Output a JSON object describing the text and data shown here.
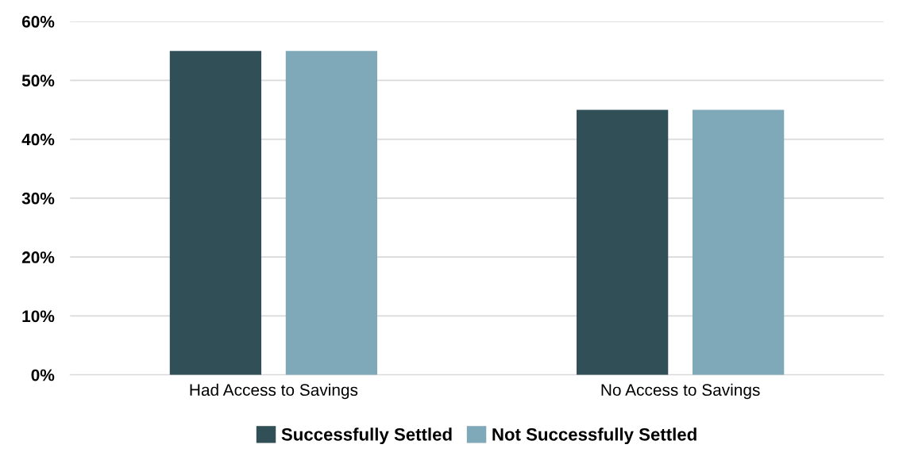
{
  "chart_data": {
    "type": "bar",
    "categories": [
      "Had Access to Savings",
      "No Access to Savings"
    ],
    "series": [
      {
        "name": "Successfully Settled",
        "color": "#314f57",
        "values": [
          55,
          45
        ]
      },
      {
        "name": "Not Successfully Settled",
        "color": "#7fa9b8",
        "values": [
          55,
          45
        ]
      }
    ],
    "ylim": [
      0,
      60
    ],
    "yticks": [
      {
        "value": 0,
        "label": "0%"
      },
      {
        "value": 10,
        "label": "10%"
      },
      {
        "value": 20,
        "label": "20%"
      },
      {
        "value": 30,
        "label": "30%"
      },
      {
        "value": 40,
        "label": "40%"
      },
      {
        "value": 50,
        "label": "50%"
      },
      {
        "value": 60,
        "label": "60%"
      }
    ],
    "grid": "y",
    "legend": "bottom"
  }
}
